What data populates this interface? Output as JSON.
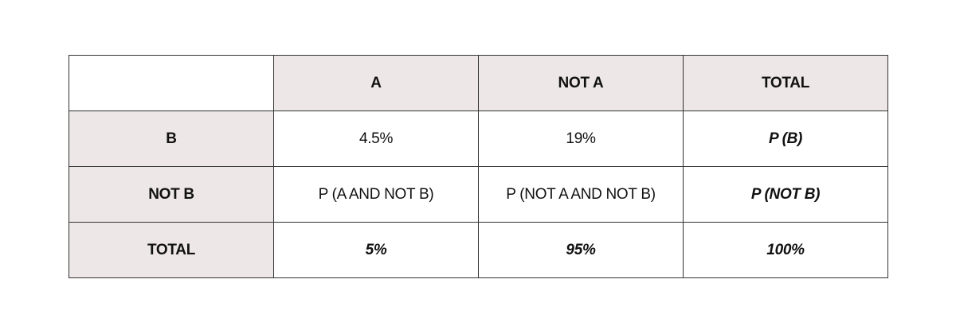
{
  "table": {
    "header": [
      "A",
      "NOT A",
      "TOTAL"
    ],
    "rows": [
      {
        "label": "B",
        "cells": [
          "4.5%",
          "19%",
          "P (B)"
        ]
      },
      {
        "label": "NOT B",
        "cells": [
          "P (A AND NOT B)",
          "P (NOT A AND NOT B)",
          "P (NOT B)"
        ]
      },
      {
        "label": "TOTAL",
        "cells": [
          "5%",
          "95%",
          "100%"
        ]
      }
    ]
  }
}
